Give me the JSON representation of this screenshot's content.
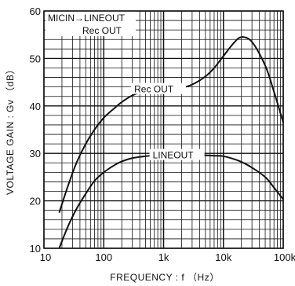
{
  "chart_data": {
    "type": "line",
    "title": "",
    "xlabel": "FREQUENCY : f （Hz）",
    "ylabel": "VOLTAGE GAIN : Gv （dB）",
    "x_scale": "log",
    "xlim": [
      10,
      100000
    ],
    "ylim": [
      10,
      60
    ],
    "grid": true,
    "x_ticks": [
      10,
      100,
      1000,
      10000,
      100000
    ],
    "x_tick_labels": [
      "10",
      "100",
      "1k",
      "10k",
      "100k"
    ],
    "y_ticks": [
      10,
      20,
      30,
      40,
      50,
      60
    ],
    "y_tick_labels": [
      "10",
      "20",
      "30",
      "40",
      "50",
      "60"
    ],
    "legend": {
      "placement": "top-left",
      "line1": "MICIN→LINEOUT",
      "line2": "Rec OUT"
    },
    "series": [
      {
        "name": "Rec OUT",
        "x": [
          18,
          25,
          35,
          50,
          70,
          100,
          150,
          200,
          300,
          500,
          700,
          1000,
          1500,
          2000,
          3000,
          5000,
          7000,
          10000,
          15000,
          20000,
          30000,
          50000,
          70000,
          100000
        ],
        "y": [
          17.5,
          23,
          28,
          32,
          35,
          37.5,
          39.5,
          40.8,
          42.2,
          43.2,
          43.5,
          43.5,
          43.6,
          43.8,
          44.5,
          46.2,
          48,
          50.5,
          53.3,
          54.5,
          53.5,
          48.5,
          43,
          36.5
        ]
      },
      {
        "name": "LINEOUT",
        "x": [
          18,
          25,
          35,
          50,
          70,
          100,
          150,
          200,
          300,
          500,
          700,
          1000,
          1500,
          2000,
          3000,
          5000,
          7000,
          10000,
          15000,
          20000,
          30000,
          50000,
          70000,
          100000
        ],
        "y": [
          10,
          14.5,
          18.3,
          21.5,
          24.2,
          26,
          27.5,
          28.3,
          29,
          29.4,
          29.6,
          29.6,
          29.6,
          29.6,
          29.6,
          29.6,
          29.5,
          29.4,
          28.8,
          28.2,
          27,
          25,
          22.8,
          20.3
        ]
      }
    ]
  }
}
